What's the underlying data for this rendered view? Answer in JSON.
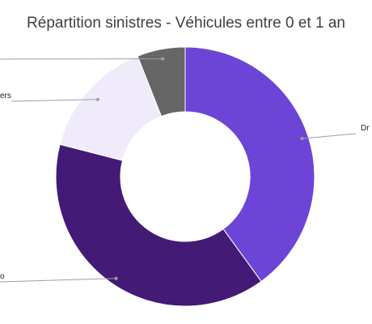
{
  "chart_data": {
    "type": "pie",
    "title": "Répartition sinistres - Véhicules entre 0 et 1 an",
    "series": [
      {
        "name": "",
        "label_text": "Dr",
        "value": 40,
        "color": "#6c45d6"
      },
      {
        "name": "",
        "label_text": "o",
        "value": 39,
        "color": "#441a77"
      },
      {
        "name": "",
        "label_text": "ers",
        "value": 15,
        "color": "#efebfb"
      },
      {
        "name": "",
        "label_text": "",
        "value": 6,
        "color": "#666666"
      }
    ]
  }
}
